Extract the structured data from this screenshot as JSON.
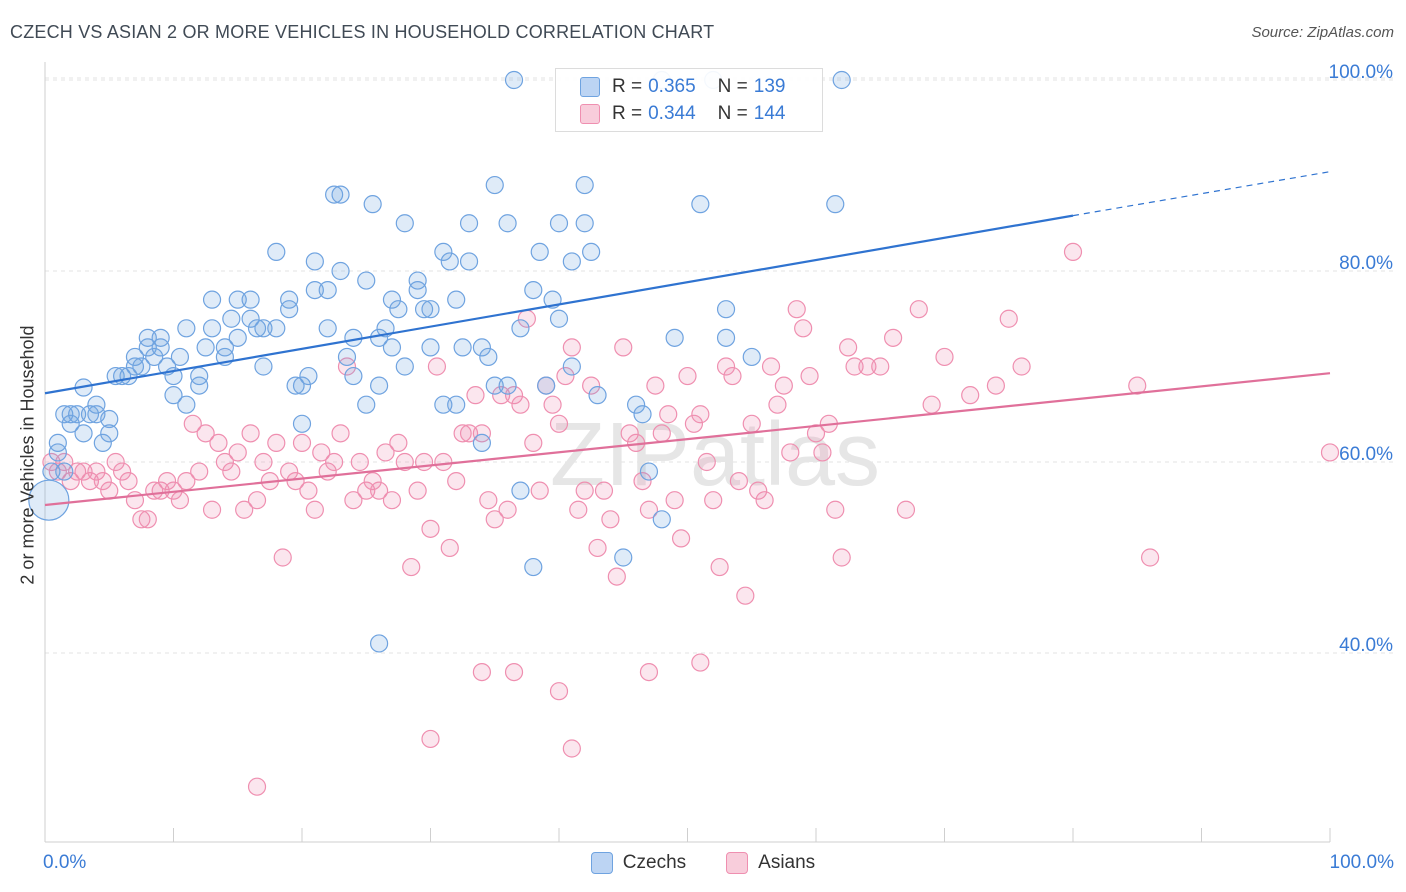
{
  "title": "CZECH VS ASIAN 2 OR MORE VEHICLES IN HOUSEHOLD CORRELATION CHART",
  "source": "Source: ZipAtlas.com",
  "watermark": "ZIPatlas",
  "legend": {
    "r_label": "R =",
    "n_label": "N =",
    "rows": [
      {
        "name": "Czechs",
        "r": "0.365",
        "n": "139",
        "color": "#6fa3e0"
      },
      {
        "name": "Asians",
        "r": "0.344",
        "n": "144",
        "color": "#ef8fb0"
      }
    ]
  },
  "bottom_legend": [
    {
      "label": "Czechs",
      "color": "#6fa3e0"
    },
    {
      "label": "Asians",
      "color": "#ef8fb0"
    }
  ],
  "axes": {
    "ylabel": "2 or more Vehicles in Household",
    "x_min_label": "0.0%",
    "x_max_label": "100.0%",
    "y_ticks": [
      {
        "value": 100,
        "label": "100.0%"
      },
      {
        "value": 80,
        "label": "80.0%"
      },
      {
        "value": 60,
        "label": "60.0%"
      },
      {
        "value": 40,
        "label": "40.0%"
      }
    ]
  },
  "chart_data": {
    "type": "scatter",
    "xlim": [
      0,
      100
    ],
    "ylim": [
      20,
      102
    ],
    "grid": true,
    "legend_placement": "top-center",
    "series": [
      {
        "name": "Czechs",
        "color": "#6fa3e0",
        "trend": {
          "x0": 0,
          "y0": 67.2,
          "x1": 80,
          "y1": 85.8,
          "dash_to_x": 100,
          "dash_to_y": 90.4
        },
        "points": [
          [
            0.3,
            56
          ],
          [
            1,
            62
          ],
          [
            1,
            61
          ],
          [
            1.5,
            65
          ],
          [
            2,
            65
          ],
          [
            2,
            64
          ],
          [
            2.5,
            65
          ],
          [
            3,
            63
          ],
          [
            3,
            67.8
          ],
          [
            3.5,
            65
          ],
          [
            4,
            66
          ],
          [
            4,
            65
          ],
          [
            4.5,
            62
          ],
          [
            5,
            63
          ],
          [
            5,
            64.5
          ],
          [
            5.5,
            69
          ],
          [
            6,
            69
          ],
          [
            6.5,
            69
          ],
          [
            7,
            70
          ],
          [
            7,
            71
          ],
          [
            7.5,
            70
          ],
          [
            8,
            73
          ],
          [
            8,
            72
          ],
          [
            8.5,
            71
          ],
          [
            9,
            73
          ],
          [
            9,
            72
          ],
          [
            9.5,
            70
          ],
          [
            10,
            67
          ],
          [
            10,
            69
          ],
          [
            10.5,
            71
          ],
          [
            11,
            74
          ],
          [
            11,
            66
          ],
          [
            12,
            68
          ],
          [
            12,
            69
          ],
          [
            12.5,
            72
          ],
          [
            13,
            74
          ],
          [
            13,
            77
          ],
          [
            14,
            71
          ],
          [
            14,
            72
          ],
          [
            14.5,
            75
          ],
          [
            15,
            73
          ],
          [
            15,
            77
          ],
          [
            16,
            77
          ],
          [
            16,
            75
          ],
          [
            16.5,
            74
          ],
          [
            17,
            74
          ],
          [
            17,
            70
          ],
          [
            18,
            82
          ],
          [
            18,
            74
          ],
          [
            19,
            77
          ],
          [
            19,
            76
          ],
          [
            19.5,
            68
          ],
          [
            20,
            68
          ],
          [
            20,
            64
          ],
          [
            20.5,
            69
          ],
          [
            21,
            81
          ],
          [
            21,
            78
          ],
          [
            22,
            78
          ],
          [
            22,
            74
          ],
          [
            22.5,
            88
          ],
          [
            23,
            88
          ],
          [
            23,
            80
          ],
          [
            23.5,
            71
          ],
          [
            24,
            69
          ],
          [
            24,
            73
          ],
          [
            25,
            79
          ],
          [
            25,
            66
          ],
          [
            25.5,
            87
          ],
          [
            26,
            68
          ],
          [
            26,
            73
          ],
          [
            26.5,
            74
          ],
          [
            27,
            77
          ],
          [
            27,
            72
          ],
          [
            27.5,
            76
          ],
          [
            28,
            85
          ],
          [
            28,
            70
          ],
          [
            29,
            79
          ],
          [
            29,
            78
          ],
          [
            29.5,
            76
          ],
          [
            30,
            76
          ],
          [
            30,
            72
          ],
          [
            31,
            82
          ],
          [
            31,
            66
          ],
          [
            31.5,
            81
          ],
          [
            32,
            77
          ],
          [
            32,
            66
          ],
          [
            32.5,
            72
          ],
          [
            33,
            81
          ],
          [
            33,
            85
          ],
          [
            34,
            72
          ],
          [
            34,
            62
          ],
          [
            34.5,
            71
          ],
          [
            35,
            68
          ],
          [
            35,
            89
          ],
          [
            36,
            68
          ],
          [
            36,
            85
          ],
          [
            36.5,
            100
          ],
          [
            37,
            74
          ],
          [
            37,
            57
          ],
          [
            38,
            49
          ],
          [
            38,
            78
          ],
          [
            38.5,
            82
          ],
          [
            39,
            68
          ],
          [
            39.5,
            77
          ],
          [
            40,
            75
          ],
          [
            40,
            85
          ],
          [
            41,
            81
          ],
          [
            41,
            70
          ],
          [
            42,
            89
          ],
          [
            42,
            85
          ],
          [
            42.5,
            82
          ],
          [
            43,
            67
          ],
          [
            45,
            50
          ],
          [
            46,
            66
          ],
          [
            46.5,
            65
          ],
          [
            47,
            59
          ],
          [
            48,
            100
          ],
          [
            48,
            54
          ],
          [
            49,
            73
          ],
          [
            51,
            87
          ],
          [
            52,
            100
          ],
          [
            53,
            73
          ],
          [
            53,
            76
          ],
          [
            55,
            71
          ],
          [
            61.5,
            87
          ],
          [
            62,
            100
          ],
          [
            0.5,
            59
          ],
          [
            1.5,
            59
          ],
          [
            26,
            41
          ]
        ]
      },
      {
        "name": "Asians",
        "color": "#ef8fb0",
        "trend": {
          "x0": 0,
          "y0": 55.5,
          "x1": 100,
          "y1": 69.3
        },
        "points": [
          [
            0.5,
            60
          ],
          [
            1,
            59
          ],
          [
            1.5,
            60
          ],
          [
            2,
            58
          ],
          [
            2.5,
            59
          ],
          [
            3,
            59
          ],
          [
            3.5,
            58
          ],
          [
            4,
            59
          ],
          [
            4.5,
            58
          ],
          [
            5,
            57
          ],
          [
            5.5,
            60
          ],
          [
            6,
            59
          ],
          [
            6.5,
            58
          ],
          [
            7,
            56
          ],
          [
            7.5,
            54
          ],
          [
            8,
            54
          ],
          [
            8.5,
            57
          ],
          [
            9,
            57
          ],
          [
            9.5,
            58
          ],
          [
            10,
            57
          ],
          [
            10.5,
            56
          ],
          [
            11,
            58
          ],
          [
            11.5,
            64
          ],
          [
            12,
            59
          ],
          [
            12.5,
            63
          ],
          [
            13,
            55
          ],
          [
            13.5,
            62
          ],
          [
            14,
            60
          ],
          [
            14.5,
            59
          ],
          [
            15,
            61
          ],
          [
            15.5,
            55
          ],
          [
            16,
            63
          ],
          [
            16.5,
            56
          ],
          [
            17,
            60
          ],
          [
            17.5,
            58
          ],
          [
            18,
            62
          ],
          [
            18.5,
            50
          ],
          [
            19,
            59
          ],
          [
            19.5,
            58
          ],
          [
            20,
            62
          ],
          [
            20.5,
            57
          ],
          [
            21,
            55
          ],
          [
            21.5,
            61
          ],
          [
            22,
            59
          ],
          [
            22.5,
            60
          ],
          [
            23,
            63
          ],
          [
            23.5,
            70
          ],
          [
            24,
            56
          ],
          [
            24.5,
            60
          ],
          [
            25,
            57
          ],
          [
            25.5,
            58
          ],
          [
            26,
            57
          ],
          [
            26.5,
            61
          ],
          [
            27,
            56
          ],
          [
            27.5,
            62
          ],
          [
            28,
            60
          ],
          [
            28.5,
            49
          ],
          [
            29,
            57
          ],
          [
            29.5,
            60
          ],
          [
            30,
            53
          ],
          [
            30.5,
            70
          ],
          [
            31,
            60
          ],
          [
            31.5,
            51
          ],
          [
            32,
            58
          ],
          [
            32.5,
            63
          ],
          [
            33,
            63
          ],
          [
            33.5,
            67
          ],
          [
            34,
            63
          ],
          [
            34.5,
            56
          ],
          [
            35,
            54
          ],
          [
            35.5,
            67
          ],
          [
            36,
            55
          ],
          [
            36.5,
            67
          ],
          [
            37,
            66
          ],
          [
            37.5,
            75
          ],
          [
            38,
            62
          ],
          [
            38.5,
            57
          ],
          [
            39,
            68
          ],
          [
            39.5,
            66
          ],
          [
            40,
            64
          ],
          [
            40.5,
            69
          ],
          [
            41,
            72
          ],
          [
            41.5,
            55
          ],
          [
            42,
            57
          ],
          [
            42.5,
            68
          ],
          [
            43,
            51
          ],
          [
            43.5,
            57
          ],
          [
            44,
            54
          ],
          [
            44.5,
            48
          ],
          [
            45,
            72
          ],
          [
            45.5,
            63
          ],
          [
            46,
            62
          ],
          [
            46.5,
            58
          ],
          [
            47,
            55
          ],
          [
            47.5,
            68
          ],
          [
            48,
            63
          ],
          [
            48.5,
            65
          ],
          [
            49,
            56
          ],
          [
            49.5,
            52
          ],
          [
            50,
            69
          ],
          [
            50.5,
            64
          ],
          [
            51,
            65
          ],
          [
            51.5,
            60
          ],
          [
            52,
            56
          ],
          [
            52.5,
            49
          ],
          [
            53,
            70
          ],
          [
            53.5,
            69
          ],
          [
            54,
            58
          ],
          [
            54.5,
            46
          ],
          [
            55,
            64
          ],
          [
            55.5,
            57
          ],
          [
            56,
            56
          ],
          [
            56.5,
            70
          ],
          [
            57,
            66
          ],
          [
            57.5,
            68
          ],
          [
            58,
            61
          ],
          [
            58.5,
            76
          ],
          [
            59,
            74
          ],
          [
            59.5,
            69
          ],
          [
            60,
            63
          ],
          [
            60.5,
            61
          ],
          [
            61,
            64
          ],
          [
            61.5,
            55
          ],
          [
            62,
            50
          ],
          [
            62.5,
            72
          ],
          [
            63,
            70
          ],
          [
            64,
            70
          ],
          [
            65,
            70
          ],
          [
            66,
            73
          ],
          [
            67,
            55
          ],
          [
            68,
            76
          ],
          [
            69,
            66
          ],
          [
            70,
            71
          ],
          [
            72,
            67
          ],
          [
            74,
            68
          ],
          [
            75,
            75
          ],
          [
            76,
            70
          ],
          [
            80,
            82
          ],
          [
            85,
            68
          ],
          [
            86,
            50
          ],
          [
            100,
            61
          ],
          [
            16.5,
            26
          ],
          [
            30,
            31
          ],
          [
            34,
            38
          ],
          [
            36.5,
            38
          ],
          [
            40,
            36
          ],
          [
            41,
            30
          ],
          [
            47,
            38
          ],
          [
            51,
            39
          ]
        ]
      }
    ]
  }
}
